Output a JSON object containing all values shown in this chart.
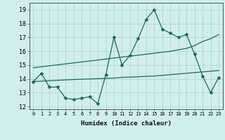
{
  "xlabel": "Humidex (Indice chaleur)",
  "x": [
    0,
    1,
    2,
    3,
    4,
    5,
    6,
    7,
    8,
    9,
    10,
    11,
    12,
    13,
    14,
    15,
    16,
    17,
    18,
    19,
    20,
    21,
    22,
    23
  ],
  "y_main": [
    13.8,
    14.4,
    13.4,
    13.4,
    12.6,
    12.5,
    12.6,
    12.7,
    12.2,
    14.3,
    17.0,
    15.0,
    15.7,
    16.9,
    18.3,
    19.0,
    17.6,
    17.3,
    17.0,
    17.2,
    15.8,
    14.2,
    13.0,
    14.1
  ],
  "y_upper": [
    14.8,
    14.87,
    14.94,
    15.01,
    15.08,
    15.15,
    15.22,
    15.29,
    15.36,
    15.43,
    15.5,
    15.57,
    15.64,
    15.71,
    15.78,
    15.85,
    15.92,
    15.99,
    16.1,
    16.2,
    16.4,
    16.7,
    16.9,
    17.2
  ],
  "y_lower": [
    13.8,
    13.83,
    13.86,
    13.89,
    13.92,
    13.95,
    13.97,
    13.99,
    14.01,
    14.03,
    14.05,
    14.1,
    14.12,
    14.15,
    14.18,
    14.2,
    14.25,
    14.3,
    14.35,
    14.4,
    14.45,
    14.5,
    14.55,
    14.6
  ],
  "line_color": "#1a6b5a",
  "bg_color": "#d0eeec",
  "grid_color": "#b0d8d4",
  "ylim": [
    11.8,
    19.5
  ],
  "xlim": [
    -0.5,
    23.5
  ],
  "yticks": [
    12,
    13,
    14,
    15,
    16,
    17,
    18,
    19
  ],
  "xticks": [
    0,
    1,
    2,
    3,
    4,
    5,
    6,
    7,
    8,
    9,
    10,
    11,
    12,
    13,
    14,
    15,
    16,
    17,
    18,
    19,
    20,
    21,
    22,
    23
  ]
}
